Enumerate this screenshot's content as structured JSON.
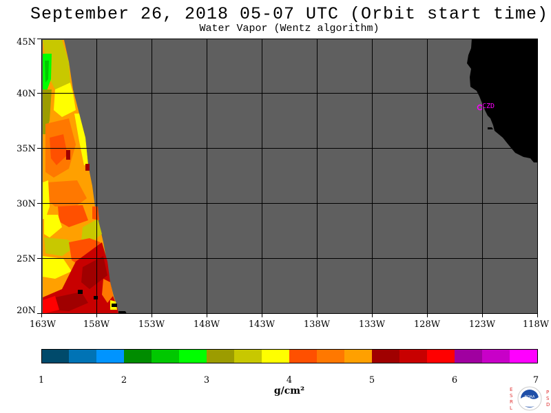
{
  "header": {
    "title": "September 26, 2018  05-07 UTC  (Orbit start time)",
    "subtitle": "Water Vapor (Wentz algorithm)"
  },
  "map": {
    "lat_labels": [
      "45N",
      "40N",
      "35N",
      "30N",
      "25N",
      "20N"
    ],
    "lon_labels": [
      "163W",
      "158W",
      "153W",
      "148W",
      "143W",
      "138W",
      "133W",
      "128W",
      "123W",
      "118W"
    ],
    "station_label": "CZD",
    "colors": {
      "no_data": "#5f5f5f",
      "land": "#000000",
      "grid": "#000000",
      "station": "#ff00ff"
    }
  },
  "legend": {
    "ticks": [
      "1",
      "2",
      "3",
      "4",
      "5",
      "6",
      "7"
    ],
    "unit": "g/cm²",
    "colors": [
      "#004a6b",
      "#0073b5",
      "#0094ff",
      "#008c00",
      "#00c800",
      "#00ff00",
      "#9c9c00",
      "#c8c800",
      "#ffff00",
      "#ff5000",
      "#ff7800",
      "#ffa000",
      "#a00000",
      "#c80000",
      "#ff0000",
      "#a000a0",
      "#c800c8",
      "#ff00ff"
    ]
  },
  "logo": {
    "left_letters": "ESRL",
    "right_letters": "PSD",
    "name": "NOAA"
  }
}
